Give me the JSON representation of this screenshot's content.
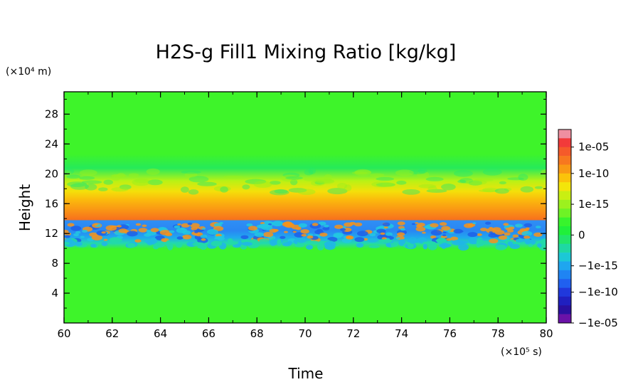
{
  "chart_data": {
    "type": "heatmap",
    "title": "H2S-g Fill1 Mixing Ratio [kg/kg]",
    "xlabel": "Time",
    "ylabel": "Height",
    "x_unit": "(×10⁵ s)",
    "y_unit": "(×10⁴ m)",
    "xlim": [
      60,
      80
    ],
    "ylim": [
      0,
      31
    ],
    "x_ticks": [
      "60",
      "62",
      "64",
      "66",
      "68",
      "70",
      "72",
      "74",
      "76",
      "78",
      "80"
    ],
    "y_ticks": [
      "4",
      "8",
      "12",
      "16",
      "20",
      "24",
      "28"
    ],
    "colorbar": {
      "labels": [
        "1e-05",
        "1e-10",
        "1e-15",
        "0",
        "−1e-15",
        "−1e-10",
        "−1e-05"
      ],
      "label_values": [
        1e-05,
        1e-10,
        1e-15,
        0,
        -1e-15,
        -1e-10,
        -1e-05
      ],
      "colors": [
        "#ef8fa0",
        "#f23a3a",
        "#f55a2a",
        "#f7781f",
        "#f99a14",
        "#fbc30a",
        "#f3e50a",
        "#c9ef12",
        "#9cf11e",
        "#6ef325",
        "#38f42c",
        "#20f03a",
        "#22e56a",
        "#1fd8a3",
        "#1cc8d6",
        "#1fa6ef",
        "#1f84f3",
        "#2060f0",
        "#2038dc",
        "#2020c0",
        "#2a10a0",
        "#6a12a8"
      ]
    },
    "field_profile": [
      {
        "height": 0,
        "level": 0
      },
      {
        "height": 10.5,
        "level": 0
      },
      {
        "height": 11.5,
        "level": -1e-15
      },
      {
        "height": 12.5,
        "level": -1e-10
      },
      {
        "height": 13.6,
        "level": -1e-10
      },
      {
        "height": 13.7,
        "level": 1e-10
      },
      {
        "height": 15.0,
        "level": 1e-12
      },
      {
        "height": 16.5,
        "level": 1e-15
      },
      {
        "height": 18.5,
        "level": 1e-20
      },
      {
        "height": 21.0,
        "level": 0
      },
      {
        "height": 31.0,
        "level": 0
      }
    ]
  }
}
